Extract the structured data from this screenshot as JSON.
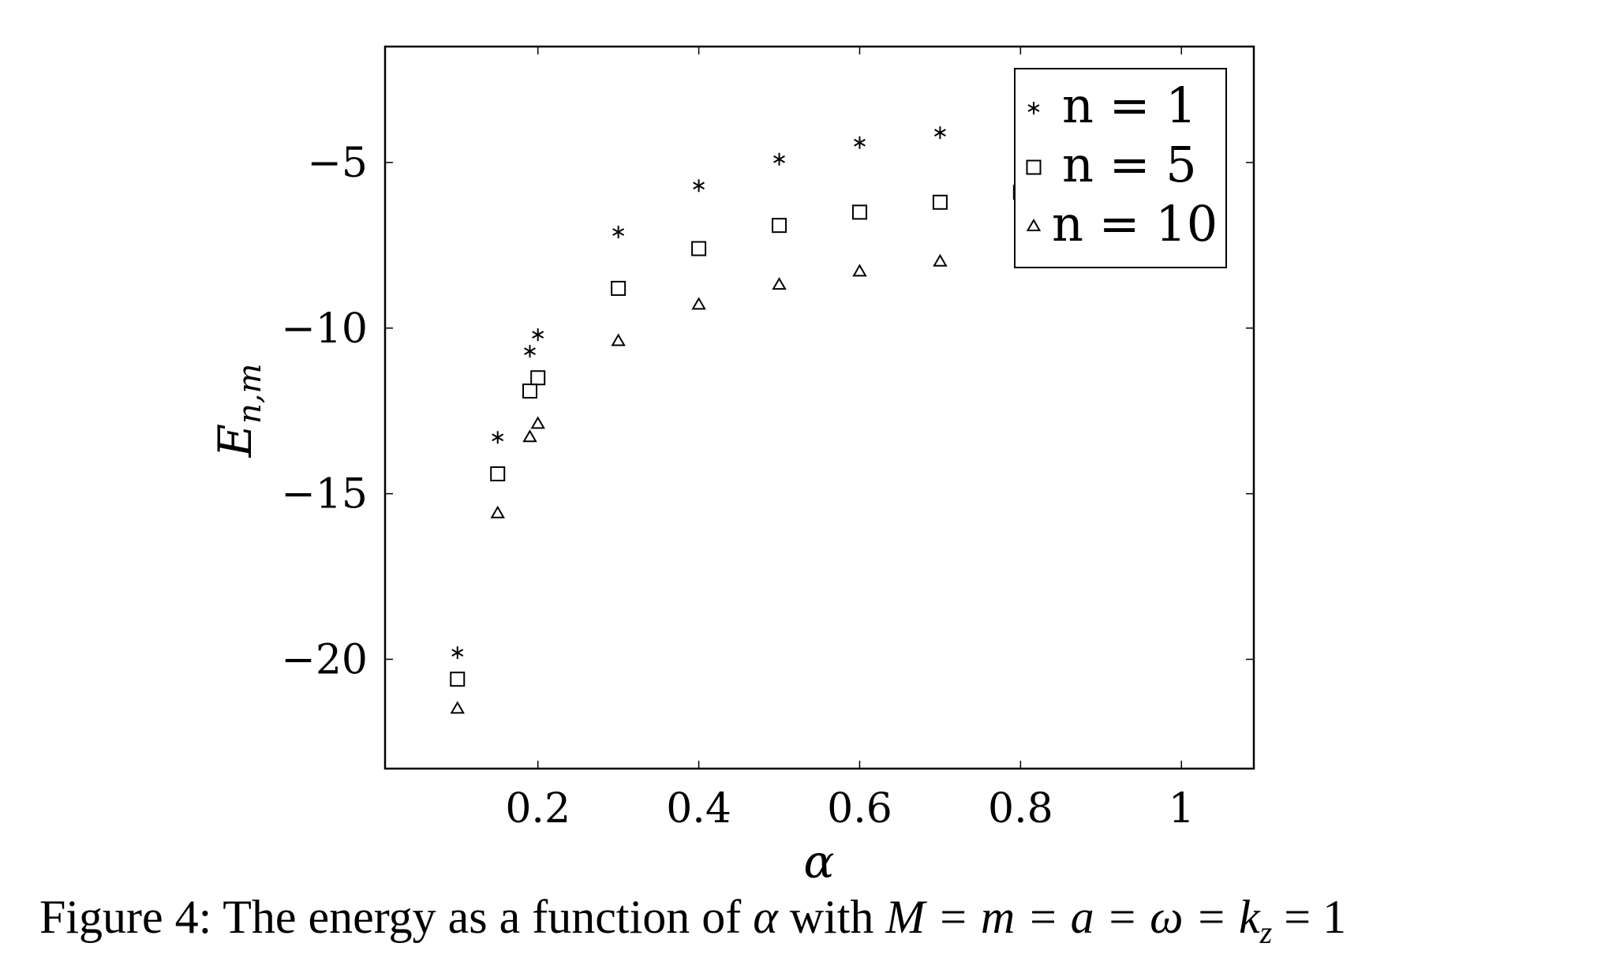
{
  "chart_data": {
    "type": "scatter",
    "xlabel": "α",
    "ylabel": "E_{n,m}",
    "ylabel_main": "E",
    "ylabel_sub": "n,m",
    "xlim": [
      0.01,
      1.09
    ],
    "ylim": [
      -23.3,
      -1.5
    ],
    "xticks": [
      0.2,
      0.4,
      0.6,
      0.8,
      1
    ],
    "xtick_labels": [
      "0.2",
      "0.4",
      "0.6",
      "0.8",
      "1"
    ],
    "yticks": [
      -5,
      -10,
      -15,
      -20
    ],
    "ytick_labels": [
      "−5",
      "−10",
      "−15",
      "−20"
    ],
    "grid": false,
    "legend_position": "top-right",
    "series": [
      {
        "name": "n = 1",
        "marker": "asterisk",
        "x": [
          0.1,
          0.15,
          0.19,
          0.2,
          0.3,
          0.4,
          0.5,
          0.6,
          0.7
        ],
        "y": [
          -19.8,
          -13.3,
          -10.7,
          -10.2,
          -7.1,
          -5.7,
          -4.9,
          -4.4,
          -4.1
        ]
      },
      {
        "name": "n = 5",
        "marker": "square",
        "x": [
          0.1,
          0.15,
          0.19,
          0.2,
          0.3,
          0.4,
          0.5,
          0.6,
          0.7,
          0.8
        ],
        "y": [
          -20.6,
          -14.4,
          -11.9,
          -11.5,
          -8.8,
          -7.6,
          -6.9,
          -6.5,
          -6.2,
          -5.9
        ]
      },
      {
        "name": "n = 10",
        "marker": "triangle",
        "x": [
          0.1,
          0.15,
          0.19,
          0.2,
          0.3,
          0.4,
          0.5,
          0.6,
          0.7
        ],
        "y": [
          -21.5,
          -15.6,
          -13.3,
          -12.9,
          -10.4,
          -9.3,
          -8.7,
          -8.3,
          -8.0
        ]
      }
    ]
  },
  "caption": "Figure 4: The energy as a function of α with M = m = a = ω = k_z = 1",
  "caption_parts": {
    "prefix": "Figure 4: The energy as a function of ",
    "alpha": "α",
    "with": " with ",
    "equation_main": "M = m = a = ω = k",
    "equation_sub": "z",
    "equation_end": " = 1"
  }
}
